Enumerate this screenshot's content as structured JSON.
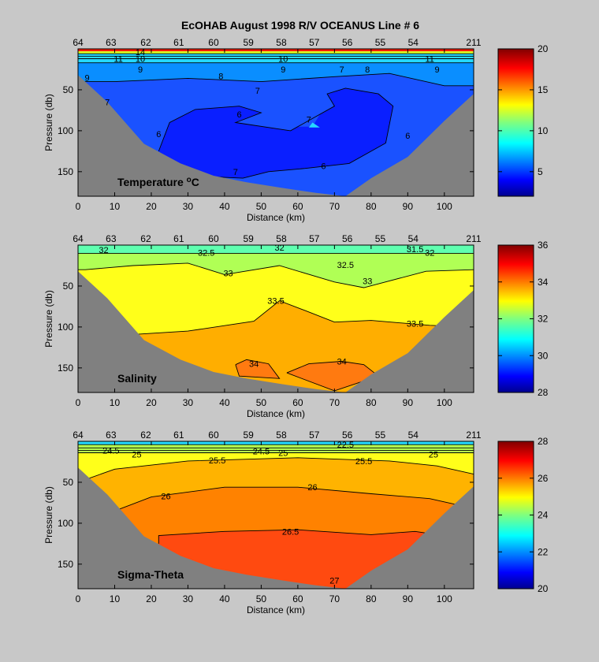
{
  "title": "EcOHAB   August 1998   R/V OCEANUS   Line # 6",
  "chart_data": [
    {
      "type": "heatmap",
      "panel_label": "Temperature",
      "panel_label_unit": "°C",
      "xlabel": "Distance (km)",
      "ylabel": "Pressure (db)",
      "xlim": [
        0,
        108
      ],
      "ylim": [
        0,
        180
      ],
      "y_reversed": true,
      "x_ticks": [
        0,
        10,
        20,
        30,
        40,
        50,
        60,
        70,
        80,
        90,
        100
      ],
      "y_ticks": [
        50,
        100,
        150
      ],
      "stations": [
        {
          "label": "64",
          "x": 0
        },
        {
          "label": "63",
          "x": 9
        },
        {
          "label": "62",
          "x": 18.5
        },
        {
          "label": "61",
          "x": 27.5
        },
        {
          "label": "60",
          "x": 37
        },
        {
          "label": "59",
          "x": 46.5
        },
        {
          "label": "58",
          "x": 55.5
        },
        {
          "label": "57",
          "x": 64.5
        },
        {
          "label": "56",
          "x": 73.5
        },
        {
          "label": "55",
          "x": 82.5
        },
        {
          "label": "54",
          "x": 91.5
        },
        {
          "label": "211",
          "x": 108
        }
      ],
      "colorbar": {
        "min": 2,
        "max": 20,
        "ticks": [
          5,
          10,
          15,
          20
        ]
      },
      "contour_labels": [
        {
          "text": "9",
          "x": 2.5,
          "y": 35
        },
        {
          "text": "8",
          "x": 39,
          "y": 33
        },
        {
          "text": "7",
          "x": 49,
          "y": 51
        },
        {
          "text": "7",
          "x": 8,
          "y": 65
        },
        {
          "text": "6",
          "x": 44,
          "y": 80
        },
        {
          "text": "7",
          "x": 63,
          "y": 86
        },
        {
          "text": "6",
          "x": 22,
          "y": 104
        },
        {
          "text": "6",
          "x": 90,
          "y": 106
        },
        {
          "text": "6",
          "x": 67,
          "y": 143
        },
        {
          "text": "7",
          "x": 43,
          "y": 150
        },
        {
          "text": "9",
          "x": 17,
          "y": 25
        },
        {
          "text": "9",
          "x": 56,
          "y": 25
        },
        {
          "text": "7",
          "x": 72,
          "y": 25
        },
        {
          "text": "8",
          "x": 79,
          "y": 25
        },
        {
          "text": "9",
          "x": 98,
          "y": 25
        },
        {
          "text": "11",
          "x": 11,
          "y": 12
        },
        {
          "text": "10",
          "x": 17,
          "y": 12
        },
        {
          "text": "10",
          "x": 56,
          "y": 12
        },
        {
          "text": "11",
          "x": 96,
          "y": 12
        },
        {
          "text": "14",
          "x": 17,
          "y": 4
        }
      ]
    },
    {
      "type": "heatmap",
      "panel_label": "Salinity",
      "xlabel": "Distance (km)",
      "ylabel": "Pressure (db)",
      "xlim": [
        0,
        108
      ],
      "ylim": [
        0,
        180
      ],
      "y_reversed": true,
      "x_ticks": [
        0,
        10,
        20,
        30,
        40,
        50,
        60,
        70,
        80,
        90,
        100
      ],
      "y_ticks": [
        50,
        100,
        150
      ],
      "stations": [
        {
          "label": "64",
          "x": 0
        },
        {
          "label": "63",
          "x": 9
        },
        {
          "label": "62",
          "x": 18.5
        },
        {
          "label": "61",
          "x": 27.5
        },
        {
          "label": "60",
          "x": 37
        },
        {
          "label": "59",
          "x": 46.5
        },
        {
          "label": "58",
          "x": 55.5
        },
        {
          "label": "57",
          "x": 64.5
        },
        {
          "label": "56",
          "x": 73.5
        },
        {
          "label": "55",
          "x": 82.5
        },
        {
          "label": "54",
          "x": 91.5
        },
        {
          "label": "211",
          "x": 108
        }
      ],
      "colorbar": {
        "min": 28,
        "max": 36,
        "ticks": [
          28,
          30,
          32,
          34,
          36
        ]
      },
      "contour_labels": [
        {
          "text": "32",
          "x": 7,
          "y": 6
        },
        {
          "text": "32.5",
          "x": 35,
          "y": 9
        },
        {
          "text": "32",
          "x": 55,
          "y": 3
        },
        {
          "text": "31.5",
          "x": 92,
          "y": 5
        },
        {
          "text": "32",
          "x": 96,
          "y": 9
        },
        {
          "text": "32.5",
          "x": 73,
          "y": 24
        },
        {
          "text": "33",
          "x": 41,
          "y": 34
        },
        {
          "text": "33",
          "x": 79,
          "y": 44
        },
        {
          "text": "33.5",
          "x": 54,
          "y": 68
        },
        {
          "text": "33.5",
          "x": 92,
          "y": 96
        },
        {
          "text": "34",
          "x": 48,
          "y": 145
        },
        {
          "text": "34",
          "x": 72,
          "y": 142
        }
      ]
    },
    {
      "type": "heatmap",
      "panel_label": "Sigma-Theta",
      "xlabel": "Distance (km)",
      "ylabel": "Pressure (db)",
      "xlim": [
        0,
        108
      ],
      "ylim": [
        0,
        180
      ],
      "y_reversed": true,
      "x_ticks": [
        0,
        10,
        20,
        30,
        40,
        50,
        60,
        70,
        80,
        90,
        100
      ],
      "y_ticks": [
        50,
        100,
        150
      ],
      "stations": [
        {
          "label": "64",
          "x": 0
        },
        {
          "label": "63",
          "x": 9
        },
        {
          "label": "62",
          "x": 18.5
        },
        {
          "label": "61",
          "x": 27.5
        },
        {
          "label": "60",
          "x": 37
        },
        {
          "label": "59",
          "x": 46.5
        },
        {
          "label": "58",
          "x": 55.5
        },
        {
          "label": "57",
          "x": 64.5
        },
        {
          "label": "56",
          "x": 73.5
        },
        {
          "label": "55",
          "x": 82.5
        },
        {
          "label": "54",
          "x": 91.5
        },
        {
          "label": "211",
          "x": 108
        }
      ],
      "colorbar": {
        "min": 20,
        "max": 28,
        "ticks": [
          20,
          22,
          24,
          26,
          28
        ]
      },
      "contour_labels": [
        {
          "text": "24.5",
          "x": 9,
          "y": 11
        },
        {
          "text": "25",
          "x": 16,
          "y": 16
        },
        {
          "text": "25.5",
          "x": 38,
          "y": 23
        },
        {
          "text": "24.5",
          "x": 50,
          "y": 12
        },
        {
          "text": "25",
          "x": 56,
          "y": 14
        },
        {
          "text": "22.5",
          "x": 73,
          "y": 4
        },
        {
          "text": "25.5",
          "x": 78,
          "y": 24
        },
        {
          "text": "25",
          "x": 97,
          "y": 16
        },
        {
          "text": "26",
          "x": 24,
          "y": 67
        },
        {
          "text": "26",
          "x": 64,
          "y": 56
        },
        {
          "text": "26.5",
          "x": 58,
          "y": 110
        },
        {
          "text": "27",
          "x": 70,
          "y": 170
        }
      ]
    }
  ]
}
